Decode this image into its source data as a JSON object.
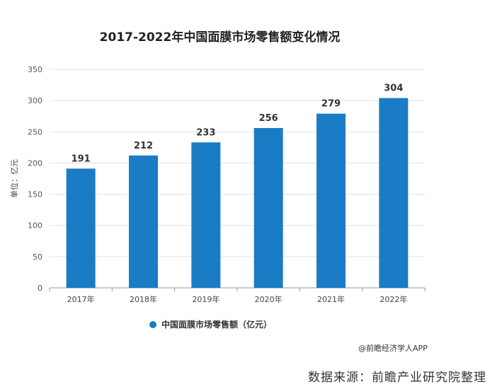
{
  "chart_data": {
    "type": "bar",
    "title": "2017-2022年中国面膜市场零售额变化情况",
    "ylabel": "单位：亿元",
    "categories": [
      "2017年",
      "2018年",
      "2019年",
      "2020年",
      "2021年",
      "2022年"
    ],
    "series": [
      {
        "name": "中国面膜市场零售额（亿元）",
        "values": [
          191,
          212,
          233,
          256,
          279,
          304
        ],
        "color": "#1a7cc4"
      }
    ],
    "ylim": [
      0,
      350
    ],
    "yticks": [
      0,
      50,
      100,
      150,
      200,
      250,
      300,
      350
    ],
    "grid": true,
    "legend": "bottom"
  },
  "footer": {
    "credit": "@前瞻经济学人APP",
    "source": "数据来源：前瞻产业研究院整理"
  }
}
